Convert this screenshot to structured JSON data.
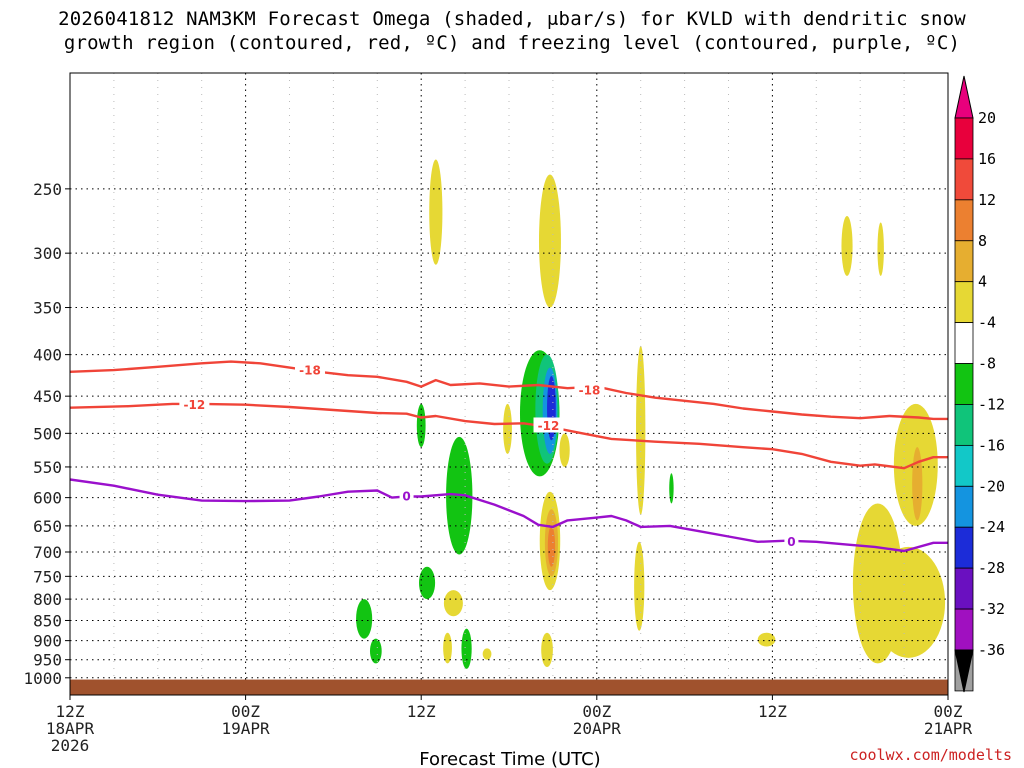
{
  "chart_data": {
    "type": "heatmap",
    "title_line1": "2026041812 NAM3KM Forecast Omega (shaded, μbar/s) for KVLD with dendritic snow",
    "title_line2": "growth region (contoured, red, ºC) and freezing level (contoured, purple, ºC)",
    "xlabel": "Forecast Time (UTC)",
    "ylabel": "",
    "y_axis": {
      "scale": "log-pressure",
      "range": [
        1050,
        180
      ],
      "ticks": [
        250,
        300,
        350,
        400,
        450,
        500,
        550,
        600,
        650,
        700,
        750,
        800,
        850,
        900,
        950,
        1000
      ]
    },
    "x_axis": {
      "range_hours": [
        0,
        60
      ],
      "ticks": [
        {
          "hour": 0,
          "line1": "12Z",
          "line2": "18APR",
          "line3": "2026"
        },
        {
          "hour": 12,
          "line1": "00Z",
          "line2": "19APR",
          "line3": ""
        },
        {
          "hour": 24,
          "line1": "12Z",
          "line2": "",
          "line3": ""
        },
        {
          "hour": 36,
          "line1": "00Z",
          "line2": "20APR",
          "line3": ""
        },
        {
          "hour": 48,
          "line1": "12Z",
          "line2": "",
          "line3": ""
        },
        {
          "hour": 60,
          "line1": "00Z",
          "line2": "21APR",
          "line3": ""
        }
      ]
    },
    "colorbar": {
      "labels": [
        "20",
        "16",
        "12",
        "8",
        "4",
        "-4",
        "-8",
        "-12",
        "-16",
        "-20",
        "-24",
        "-28",
        "-32",
        "-36"
      ],
      "colors": [
        "#e8003c",
        "#f04a3a",
        "#ec8030",
        "#e6ae30",
        "#e6d834",
        "#ffffff",
        "#12c412",
        "#10c47a",
        "#12c8c8",
        "#1494e0",
        "#1c2cd8",
        "#6a10c0",
        "#a010c0",
        "#a0a0a0",
        "#000000"
      ],
      "top_arrow_color": "#e8007c",
      "bottom_arrow_color": "#000000"
    },
    "contours": {
      "minus18": {
        "label": "-18",
        "color": "#f04438",
        "points": [
          [
            0,
            420
          ],
          [
            3,
            418
          ],
          [
            6,
            414
          ],
          [
            9,
            410
          ],
          [
            11,
            408
          ],
          [
            13,
            410
          ],
          [
            15,
            415
          ],
          [
            17,
            420
          ],
          [
            19,
            424
          ],
          [
            21,
            426
          ],
          [
            23,
            432
          ],
          [
            24,
            438
          ],
          [
            25,
            430
          ],
          [
            26,
            436
          ],
          [
            28,
            434
          ],
          [
            30,
            438
          ],
          [
            32,
            436
          ],
          [
            34,
            440
          ],
          [
            36,
            438
          ],
          [
            38,
            446
          ],
          [
            40,
            452
          ],
          [
            42,
            456
          ],
          [
            44,
            460
          ],
          [
            46,
            466
          ],
          [
            48,
            470
          ],
          [
            50,
            474
          ],
          [
            52,
            477
          ],
          [
            54,
            479
          ],
          [
            56,
            476
          ],
          [
            58,
            478
          ],
          [
            59,
            480
          ],
          [
            60,
            480
          ]
        ]
      },
      "minus12": {
        "label": "-12",
        "color": "#f04438",
        "points": [
          [
            0,
            465
          ],
          [
            4,
            463
          ],
          [
            7,
            460
          ],
          [
            9,
            460
          ],
          [
            12,
            461
          ],
          [
            15,
            464
          ],
          [
            18,
            468
          ],
          [
            21,
            472
          ],
          [
            23,
            473
          ],
          [
            24,
            478
          ],
          [
            25,
            476
          ],
          [
            27,
            483
          ],
          [
            29,
            487
          ],
          [
            31,
            486
          ],
          [
            33,
            492
          ],
          [
            35,
            500
          ],
          [
            37,
            508
          ],
          [
            40,
            512
          ],
          [
            43,
            515
          ],
          [
            46,
            520
          ],
          [
            48,
            523
          ],
          [
            50,
            530
          ],
          [
            52,
            542
          ],
          [
            54,
            548
          ],
          [
            55,
            546
          ],
          [
            57,
            552
          ],
          [
            58,
            542
          ],
          [
            59,
            535
          ],
          [
            60,
            535
          ]
        ]
      },
      "zero": {
        "label": "0",
        "color": "#9a10cc",
        "points": [
          [
            0,
            570
          ],
          [
            3,
            580
          ],
          [
            6,
            595
          ],
          [
            9,
            605
          ],
          [
            12,
            606
          ],
          [
            15,
            605
          ],
          [
            17,
            598
          ],
          [
            19,
            590
          ],
          [
            21,
            588
          ],
          [
            22,
            600
          ],
          [
            23,
            598
          ],
          [
            24,
            598
          ],
          [
            26,
            594
          ],
          [
            27,
            596
          ],
          [
            29,
            612
          ],
          [
            31,
            632
          ],
          [
            32,
            648
          ],
          [
            33,
            652
          ],
          [
            34,
            640
          ],
          [
            36,
            635
          ],
          [
            37,
            632
          ],
          [
            38,
            640
          ],
          [
            39,
            652
          ],
          [
            41,
            650
          ],
          [
            43,
            660
          ],
          [
            45,
            670
          ],
          [
            47,
            680
          ],
          [
            49,
            678
          ],
          [
            51,
            680
          ],
          [
            53,
            685
          ],
          [
            55,
            690
          ],
          [
            57,
            698
          ],
          [
            59,
            682
          ],
          [
            60,
            682
          ]
        ]
      }
    },
    "contour_labels": [
      {
        "text": "-18",
        "hour": 16.4,
        "p": 418,
        "color": "#f04438"
      },
      {
        "text": "-18",
        "hour": 35.5,
        "p": 442,
        "color": "#f04438"
      },
      {
        "text": "-12",
        "hour": 8.5,
        "p": 461,
        "color": "#f04438"
      },
      {
        "text": "-12",
        "hour": 32.7,
        "p": 489,
        "color": "#f04438"
      },
      {
        "text": "0",
        "hour": 23.0,
        "p": 597,
        "color": "#9a10cc"
      },
      {
        "text": "0",
        "hour": 49.3,
        "p": 679,
        "color": "#9a10cc"
      }
    ],
    "omega_regions": [
      {
        "hour": 25.0,
        "p": [
          230,
          310
        ],
        "w": 0.45,
        "value": 4
      },
      {
        "hour": 32.8,
        "p": [
          240,
          350
        ],
        "w": 0.75,
        "value": 4
      },
      {
        "hour": 53.1,
        "p": [
          270,
          320
        ],
        "w": 0.38,
        "value": 4
      },
      {
        "hour": 55.4,
        "p": [
          275,
          320
        ],
        "w": 0.22,
        "value": 4
      },
      {
        "hour": 24.0,
        "p": [
          460,
          520
        ],
        "w": 0.3,
        "value": -4
      },
      {
        "hour": 26.6,
        "p": [
          505,
          705
        ],
        "w": 0.9,
        "value": -4
      },
      {
        "hour": 32.1,
        "p": [
          395,
          565
        ],
        "w": 1.35,
        "value": -6
      },
      {
        "hour": 32.6,
        "p": [
          400,
          545
        ],
        "w": 0.8,
        "value": -10
      },
      {
        "hour": 32.8,
        "p": [
          415,
          530
        ],
        "w": 0.5,
        "value": -16
      },
      {
        "hour": 32.9,
        "p": [
          425,
          510
        ],
        "w": 0.3,
        "value": -22
      },
      {
        "hour": 29.9,
        "p": [
          460,
          530
        ],
        "w": 0.3,
        "value": 4
      },
      {
        "hour": 33.8,
        "p": [
          500,
          550
        ],
        "w": 0.35,
        "value": 4
      },
      {
        "hour": 32.8,
        "p": [
          590,
          780
        ],
        "w": 0.7,
        "value": 4
      },
      {
        "hour": 32.9,
        "p": [
          620,
          750
        ],
        "w": 0.45,
        "value": 8
      },
      {
        "hour": 32.9,
        "p": [
          650,
          730
        ],
        "w": 0.25,
        "value": 12
      },
      {
        "hour": 39.0,
        "p": [
          390,
          630
        ],
        "w": 0.32,
        "value": 4
      },
      {
        "hour": 41.1,
        "p": [
          560,
          610
        ],
        "w": 0.15,
        "value": -4
      },
      {
        "hour": 38.9,
        "p": [
          680,
          875
        ],
        "w": 0.35,
        "value": 4
      },
      {
        "hour": 24.4,
        "p": [
          730,
          800
        ],
        "w": 0.55,
        "value": -4
      },
      {
        "hour": 26.2,
        "p": [
          780,
          840
        ],
        "w": 0.65,
        "value": 4
      },
      {
        "hour": 20.1,
        "p": [
          800,
          895
        ],
        "w": 0.55,
        "value": -4
      },
      {
        "hour": 20.9,
        "p": [
          895,
          960
        ],
        "w": 0.4,
        "value": -4
      },
      {
        "hour": 25.8,
        "p": [
          880,
          960
        ],
        "w": 0.3,
        "value": 4
      },
      {
        "hour": 27.1,
        "p": [
          870,
          975
        ],
        "w": 0.35,
        "value": -4
      },
      {
        "hour": 28.5,
        "p": [
          920,
          950
        ],
        "w": 0.3,
        "value": 4
      },
      {
        "hour": 32.6,
        "p": [
          880,
          970
        ],
        "w": 0.4,
        "value": 4
      },
      {
        "hour": 47.6,
        "p": [
          880,
          915
        ],
        "w": 0.6,
        "value": 4
      },
      {
        "hour": 57.8,
        "p": [
          460,
          650
        ],
        "w": 1.5,
        "value": 4
      },
      {
        "hour": 57.9,
        "p": [
          520,
          640
        ],
        "w": 0.35,
        "value": 8
      },
      {
        "hour": 55.2,
        "p": [
          610,
          960
        ],
        "w": 1.7,
        "value": 4
      },
      {
        "hour": 57.3,
        "p": [
          690,
          945
        ],
        "w": 2.5,
        "value": 4
      }
    ],
    "ground": {
      "color": "#a0522d",
      "p_top": 1005
    }
  },
  "credit": "coolwx.com/modelts"
}
